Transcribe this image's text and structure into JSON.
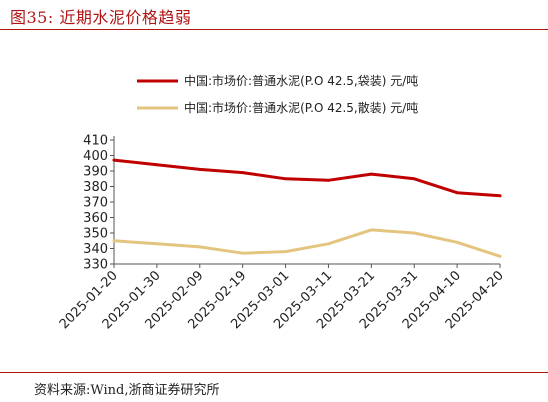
{
  "figure": {
    "title": "图35:  近期水泥价格趋弱",
    "source": "资料来源:Wind,浙商证券研究所"
  },
  "chart_data": {
    "type": "line",
    "x": [
      "2025-01-20",
      "2025-01-30",
      "2025-02-09",
      "2025-02-19",
      "2025-03-01",
      "2025-03-11",
      "2025-03-21",
      "2025-03-31",
      "2025-04-10",
      "2025-04-20"
    ],
    "ylim": [
      330,
      410
    ],
    "yticks": [
      330,
      340,
      350,
      360,
      370,
      380,
      390,
      400,
      410
    ],
    "grid": false,
    "legend_position": "top",
    "series": [
      {
        "name": "中国:市场价:普通水泥(P.O 42.5,袋装) 元/吨",
        "color": "#c00000",
        "values": [
          397,
          394,
          391,
          389,
          385,
          384,
          388,
          385,
          376,
          374
        ]
      },
      {
        "name": "中国:市场价:普通水泥(P.O 42.5,散装) 元/吨",
        "color": "#e3c57f",
        "values": [
          345,
          343,
          341,
          337,
          338,
          343,
          352,
          350,
          344,
          335
        ]
      }
    ]
  }
}
